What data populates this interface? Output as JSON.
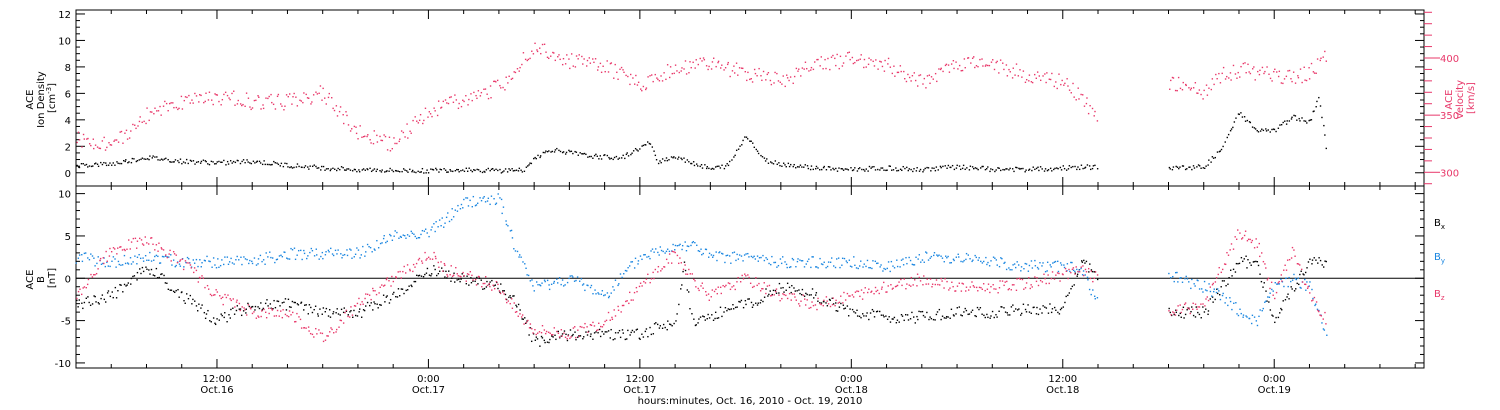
{
  "colors": {
    "density": "#000000",
    "velocity": "#e8386a",
    "bx": "#000000",
    "by": "#1a86e0",
    "bz": "#e8386a"
  },
  "xaxis": {
    "title": "hours:minutes, Oct. 16, 2010 - Oct. 19, 2010",
    "ticks": [
      {
        "hour": 12,
        "time": "12:00",
        "date": "Oct.16"
      },
      {
        "hour": 24,
        "time": "0:00",
        "date": "Oct.17"
      },
      {
        "hour": 36,
        "time": "12:00",
        "date": "Oct.17"
      },
      {
        "hour": 48,
        "time": "0:00",
        "date": "Oct.18"
      },
      {
        "hour": 60,
        "time": "12:00",
        "date": "Oct.18"
      },
      {
        "hour": 72,
        "time": "0:00",
        "date": "Oct.19"
      }
    ]
  },
  "chart_data": [
    {
      "type": "scatter",
      "xrange_hours": [
        4.0,
        80.5
      ],
      "left_axis": {
        "label_lines": [
          "ACE",
          "Ion Density",
          "[cm^-3]"
        ],
        "range": [
          -1,
          12.3
        ],
        "ticks": [
          "0",
          "2",
          "4",
          "6",
          "8",
          "10",
          "12"
        ]
      },
      "right_axis": {
        "label_lines": [
          "ACE",
          "Velocity",
          "[km/s]"
        ],
        "range": [
          288,
          442
        ],
        "ticks": [
          "300",
          "350",
          "400"
        ]
      },
      "series": [
        {
          "key": "density",
          "axis": "left",
          "points": [
            [
              4,
              0.6
            ],
            [
              6,
              0.7
            ],
            [
              8,
              1.2
            ],
            [
              10,
              0.9
            ],
            [
              12,
              0.8
            ],
            [
              14,
              0.9
            ],
            [
              16,
              0.6
            ],
            [
              18,
              0.4
            ],
            [
              20,
              0.3
            ],
            [
              22,
              0.2
            ],
            [
              24,
              0.2
            ],
            [
              26,
              0.3
            ],
            [
              28,
              0.2
            ],
            [
              29.5,
              0.3
            ],
            [
              30,
              1.2
            ],
            [
              31,
              1.8
            ],
            [
              33,
              1.3
            ],
            [
              35,
              1.2
            ],
            [
              36.5,
              2.3
            ],
            [
              37,
              0.9
            ],
            [
              38,
              1.3
            ],
            [
              40,
              0.3
            ],
            [
              41,
              0.6
            ],
            [
              42,
              2.9
            ],
            [
              43,
              1.0
            ],
            [
              44,
              0.7
            ],
            [
              46,
              0.4
            ],
            [
              48,
              0.3
            ],
            [
              50,
              0.4
            ],
            [
              52,
              0.3
            ],
            [
              54,
              0.5
            ],
            [
              56,
              0.3
            ],
            [
              58,
              0.3
            ],
            [
              60,
              0.4
            ],
            [
              62,
              0.5
            ],
            [
              66,
              0.4
            ],
            [
              68,
              0.5
            ],
            [
              69,
              1.8
            ],
            [
              70,
              4.6
            ],
            [
              71,
              3.2
            ],
            [
              72,
              3.2
            ],
            [
              73,
              4.3
            ],
            [
              74,
              3.9
            ],
            [
              74.5,
              5.8
            ],
            [
              75,
              1.2
            ]
          ]
        },
        {
          "key": "velocity",
          "axis": "right",
          "points": [
            [
              4,
              330
            ],
            [
              6,
              325
            ],
            [
              8,
              350
            ],
            [
              10,
              362
            ],
            [
              12,
              367
            ],
            [
              14,
              362
            ],
            [
              16,
              362
            ],
            [
              18,
              370
            ],
            [
              20,
              335
            ],
            [
              22,
              325
            ],
            [
              24,
              355
            ],
            [
              26,
              365
            ],
            [
              28,
              375
            ],
            [
              30,
              410
            ],
            [
              32,
              398
            ],
            [
              34,
              392
            ],
            [
              36,
              378
            ],
            [
              38,
              393
            ],
            [
              40,
              395
            ],
            [
              42,
              388
            ],
            [
              44,
              380
            ],
            [
              46,
              395
            ],
            [
              48,
              400
            ],
            [
              50,
              394
            ],
            [
              52,
              380
            ],
            [
              54,
              395
            ],
            [
              56,
              396
            ],
            [
              58,
              385
            ],
            [
              60,
              380
            ],
            [
              62,
              350
            ],
            [
              66,
              380
            ],
            [
              68,
              370
            ],
            [
              69,
              385
            ],
            [
              70,
              390
            ],
            [
              72,
              386
            ],
            [
              73,
              383
            ],
            [
              74,
              388
            ],
            [
              75,
              402
            ]
          ]
        }
      ]
    },
    {
      "type": "scatter",
      "xrange_hours": [
        4.0,
        80.5
      ],
      "left_axis": {
        "label_lines": [
          "ACE",
          "B",
          "[nT]"
        ],
        "range": [
          -10.6,
          10.9
        ],
        "ticks": [
          "-10",
          "-5",
          "0",
          "5",
          "10"
        ]
      },
      "legend": [
        {
          "key": "bx",
          "label": "B",
          "sub": "x"
        },
        {
          "key": "by",
          "label": "B",
          "sub": "y"
        },
        {
          "key": "bz",
          "label": "B",
          "sub": "z"
        }
      ],
      "series": [
        {
          "key": "bx",
          "points": [
            [
              4,
              -3
            ],
            [
              6,
              -2
            ],
            [
              8,
              1.5
            ],
            [
              10,
              -2
            ],
            [
              12,
              -5
            ],
            [
              14,
              -3
            ],
            [
              16,
              -3
            ],
            [
              18,
              -4
            ],
            [
              20,
              -4
            ],
            [
              22,
              -2
            ],
            [
              24,
              1
            ],
            [
              26,
              0
            ],
            [
              28,
              -1
            ],
            [
              29,
              -3
            ],
            [
              30,
              -7.5
            ],
            [
              32,
              -6.5
            ],
            [
              34,
              -6.5
            ],
            [
              36,
              -6.5
            ],
            [
              38,
              -5
            ],
            [
              38.5,
              1.5
            ],
            [
              39,
              -5
            ],
            [
              42,
              -3
            ],
            [
              44,
              -1
            ],
            [
              46,
              -2
            ],
            [
              48,
              -4
            ],
            [
              50,
              -4.5
            ],
            [
              52,
              -4.5
            ],
            [
              54,
              -4
            ],
            [
              56,
              -4
            ],
            [
              58,
              -3.5
            ],
            [
              60,
              -3.5
            ],
            [
              61,
              2
            ],
            [
              62,
              0.5
            ],
            [
              66,
              -4
            ],
            [
              68,
              -4
            ],
            [
              70,
              2
            ],
            [
              71,
              2
            ],
            [
              72,
              -5
            ],
            [
              73,
              -1
            ],
            [
              74,
              2
            ],
            [
              75,
              2
            ]
          ]
        },
        {
          "key": "by",
          "points": [
            [
              4,
              2.5
            ],
            [
              6,
              2
            ],
            [
              8,
              2.5
            ],
            [
              10,
              2
            ],
            [
              12,
              2
            ],
            [
              14,
              2
            ],
            [
              16,
              3
            ],
            [
              18,
              3
            ],
            [
              20,
              3
            ],
            [
              22,
              5
            ],
            [
              24,
              5.5
            ],
            [
              25,
              7
            ],
            [
              26,
              9
            ],
            [
              28,
              9.5
            ],
            [
              29,
              3
            ],
            [
              30,
              -1
            ],
            [
              32,
              0
            ],
            [
              34,
              -2
            ],
            [
              36,
              2.5
            ],
            [
              38,
              4
            ],
            [
              39,
              4
            ],
            [
              40,
              2.5
            ],
            [
              42,
              2.5
            ],
            [
              44,
              2
            ],
            [
              46,
              2
            ],
            [
              48,
              2
            ],
            [
              50,
              1.5
            ],
            [
              52,
              2.5
            ],
            [
              54,
              2.5
            ],
            [
              56,
              2
            ],
            [
              58,
              1.5
            ],
            [
              60,
              1.5
            ],
            [
              61,
              1
            ],
            [
              62,
              -3
            ],
            [
              66,
              0.5
            ],
            [
              68,
              -1
            ],
            [
              69,
              -2
            ],
            [
              70,
              -4
            ],
            [
              71,
              -5
            ],
            [
              72,
              -1
            ],
            [
              73,
              0
            ],
            [
              74,
              -1
            ],
            [
              75,
              -7
            ]
          ]
        },
        {
          "key": "bz",
          "points": [
            [
              4,
              -2
            ],
            [
              6,
              3.5
            ],
            [
              8,
              4.5
            ],
            [
              10,
              2
            ],
            [
              12,
              -2
            ],
            [
              14,
              -4
            ],
            [
              16,
              -4
            ],
            [
              18,
              -7
            ],
            [
              20,
              -3
            ],
            [
              22,
              0
            ],
            [
              24,
              3
            ],
            [
              25,
              1
            ],
            [
              26,
              0.5
            ],
            [
              28,
              -1
            ],
            [
              29,
              -4
            ],
            [
              30,
              -6
            ],
            [
              32,
              -6.5
            ],
            [
              34,
              -5
            ],
            [
              36,
              -1
            ],
            [
              38,
              3
            ],
            [
              39,
              0
            ],
            [
              40,
              -2
            ],
            [
              42,
              0
            ],
            [
              44,
              -2
            ],
            [
              46,
              -3
            ],
            [
              48,
              -2
            ],
            [
              50,
              -1
            ],
            [
              52,
              0
            ],
            [
              54,
              -1
            ],
            [
              56,
              -1
            ],
            [
              58,
              -0.5
            ],
            [
              60,
              0.5
            ],
            [
              61,
              1
            ],
            [
              62,
              0
            ],
            [
              66,
              -4
            ],
            [
              68,
              -3
            ],
            [
              70,
              5.5
            ],
            [
              71,
              4
            ],
            [
              72,
              -2
            ],
            [
              73,
              3.5
            ],
            [
              74,
              -2
            ],
            [
              75,
              -5
            ]
          ]
        }
      ]
    }
  ]
}
